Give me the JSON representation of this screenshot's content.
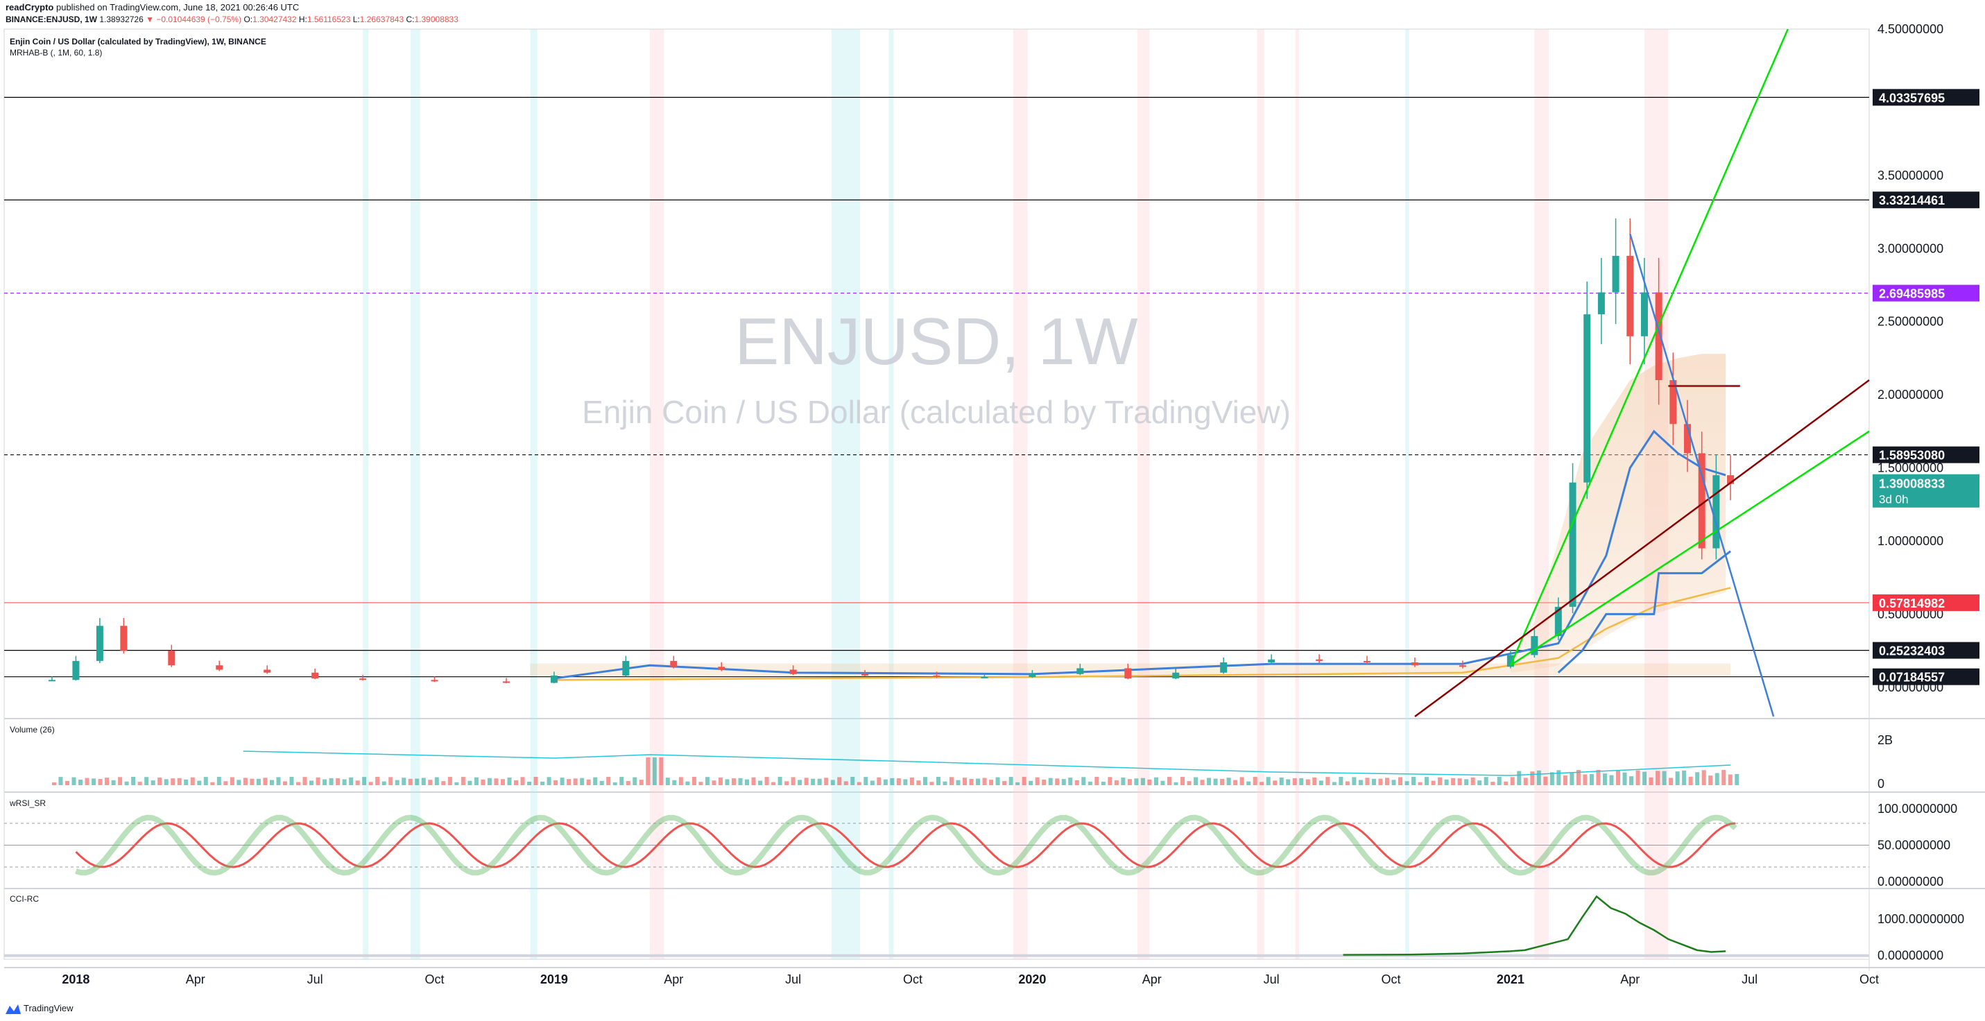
{
  "header": {
    "author": "readCrypto",
    "published": "published on TradingView.com, June 18, 2021 00:26:46 UTC",
    "symbol": "BINANCE:ENJUSD, 1W",
    "price": "1.38932726",
    "change": "▼ −0.01044639 (−0.75%)",
    "o_label": "O:",
    "o": "1.30427432",
    "h_label": "H:",
    "h": "1.56116523",
    "l_label": "L:",
    "l": "1.26637843",
    "c_label": "C:",
    "c": "1.39008833"
  },
  "legend": {
    "title": "Enjin Coin / US Dollar (calculated by TradingView), 1W, BINANCE",
    "indicator": "MRHAB-B (, 1M, 60, 1.8)"
  },
  "watermark": {
    "main": "ENJUSD, 1W",
    "sub": "Enjin Coin / US Dollar (calculated by TradingView)"
  },
  "panes": {
    "volume": "Volume (26)",
    "wrsi": "wRSI_SR",
    "cci": "CCI-RC"
  },
  "footer": {
    "brand": "TradingView"
  },
  "colors": {
    "up": "#26a69a",
    "down": "#ef5350",
    "green_line": "#00e600",
    "blue_line": "#3d7fd9",
    "darkred_line": "#8b0000",
    "purple": "#9c27ff",
    "teal_label": "#26a69a"
  },
  "chart_data": [
    {
      "type": "line",
      "pane": "price",
      "title": "ENJUSD, 1W",
      "x_ticks": [
        "2018",
        "Apr",
        "Jul",
        "Oct",
        "2019",
        "Apr",
        "Jul",
        "Oct",
        "2020",
        "Apr",
        "Jul",
        "Oct",
        "2021",
        "Apr",
        "Jul",
        "Oct"
      ],
      "x_tick_dates": [
        2018.0,
        2018.25,
        2018.5,
        2018.75,
        2019.0,
        2019.25,
        2019.5,
        2019.75,
        2020.0,
        2020.25,
        2020.5,
        2020.75,
        2021.0,
        2021.25,
        2021.5,
        2021.75
      ],
      "xlim": [
        2017.85,
        2021.75
      ],
      "ylim": [
        -0.2,
        4.5
      ],
      "y_ticks": [
        "4.50000000",
        "3.50000000",
        "3.00000000",
        "2.50000000",
        "2.00000000",
        "1.50000000",
        "1.00000000",
        "0.50000000",
        "0.00000000"
      ],
      "y_tick_values": [
        4.5,
        3.5,
        3.0,
        2.5,
        2.0,
        1.5,
        1.0,
        0.5,
        0.0
      ],
      "horizontal_levels": [
        {
          "value": 4.03357695,
          "label": "4.03357695",
          "style": "solid",
          "color": "#000000"
        },
        {
          "value": 3.33214461,
          "label": "3.33214461",
          "style": "solid",
          "color": "#000000"
        },
        {
          "value": 2.69485985,
          "label": "2.69485985",
          "style": "dashed",
          "color": "#9c27ff"
        },
        {
          "value": 1.5895308,
          "label": "1.58953080",
          "style": "dashed",
          "color": "#000000"
        },
        {
          "value": 0.57814982,
          "label": "0.57814982",
          "style": "solid",
          "color": "#ef5350"
        },
        {
          "value": 0.25232403,
          "label": "0.25232403",
          "style": "solid",
          "color": "#000000"
        },
        {
          "value": 0.07184557,
          "label": "0.07184557",
          "style": "solid",
          "color": "#000000"
        }
      ],
      "last_price": {
        "value": 1.39008833,
        "label": "1.39008833",
        "countdown": "3d 0h"
      },
      "series": [
        {
          "kind": "candles",
          "x": [
            2017.95,
            2018.0,
            2018.05,
            2018.1,
            2018.2,
            2018.3,
            2018.4,
            2018.5,
            2018.6,
            2018.75,
            2018.9,
            2019.0,
            2019.15,
            2019.25,
            2019.35,
            2019.5,
            2019.65,
            2019.8,
            2019.9,
            2020.0,
            2020.1,
            2020.2,
            2020.3,
            2020.4,
            2020.5,
            2020.6,
            2020.7,
            2020.8,
            2020.9,
            2021.0,
            2021.05,
            2021.1,
            2021.13,
            2021.16,
            2021.19,
            2021.22,
            2021.25,
            2021.28,
            2021.31,
            2021.34,
            2021.37,
            2021.4,
            2021.43,
            2021.46
          ],
          "values": [
            0.05,
            0.18,
            0.42,
            0.25,
            0.15,
            0.12,
            0.1,
            0.06,
            0.05,
            0.04,
            0.03,
            0.08,
            0.18,
            0.14,
            0.12,
            0.09,
            0.08,
            0.07,
            0.07,
            0.09,
            0.13,
            0.06,
            0.1,
            0.17,
            0.19,
            0.18,
            0.17,
            0.15,
            0.14,
            0.22,
            0.35,
            0.55,
            1.4,
            2.55,
            2.7,
            2.95,
            2.4,
            2.7,
            2.1,
            1.8,
            1.6,
            0.95,
            1.45,
            1.39
          ]
        },
        {
          "kind": "trendline",
          "name": "",
          "color": "#00e600",
          "x": [
            2021.0,
            2021.58
          ],
          "values": [
            0.15,
            4.5
          ]
        },
        {
          "kind": "trendline",
          "name": "",
          "color": "#00e600",
          "x": [
            2021.0,
            2021.75
          ],
          "values": [
            0.15,
            1.75
          ]
        },
        {
          "kind": "trendline",
          "name": "",
          "color": "#8b0000",
          "x": [
            2020.8,
            2021.75
          ],
          "values": [
            -0.2,
            2.1
          ]
        },
        {
          "kind": "trendline",
          "name": "",
          "color": "#3d7fd9",
          "x": [
            2021.25,
            2021.55
          ],
          "values": [
            3.1,
            -0.2
          ]
        }
      ]
    },
    {
      "type": "bar",
      "pane": "volume",
      "title": "Volume (26)",
      "y_ticks": [
        "2B",
        "0"
      ],
      "y_tick_values": [
        2,
        0
      ]
    },
    {
      "type": "line",
      "pane": "wrsi",
      "title": "wRSI_SR",
      "ylim": [
        0,
        100
      ],
      "y_ticks": [
        "100.00000000",
        "50.00000000",
        "0.00000000"
      ],
      "y_tick_values": [
        100,
        50,
        0
      ]
    },
    {
      "type": "line",
      "pane": "cci",
      "title": "CCI-RC",
      "ylim": [
        -100,
        1800
      ],
      "y_ticks": [
        "1000.00000000",
        "0.00000000"
      ],
      "y_tick_values": [
        1000,
        0
      ],
      "x": [
        2020.65,
        2020.8,
        2020.9,
        2021.0,
        2021.03,
        2021.06,
        2021.09,
        2021.12,
        2021.15,
        2021.18,
        2021.21,
        2021.24,
        2021.27,
        2021.3,
        2021.33,
        2021.36,
        2021.39,
        2021.42,
        2021.45
      ],
      "values": [
        20,
        30,
        60,
        120,
        150,
        250,
        350,
        450,
        1050,
        1620,
        1300,
        1150,
        900,
        700,
        450,
        300,
        150,
        100,
        120
      ]
    }
  ]
}
